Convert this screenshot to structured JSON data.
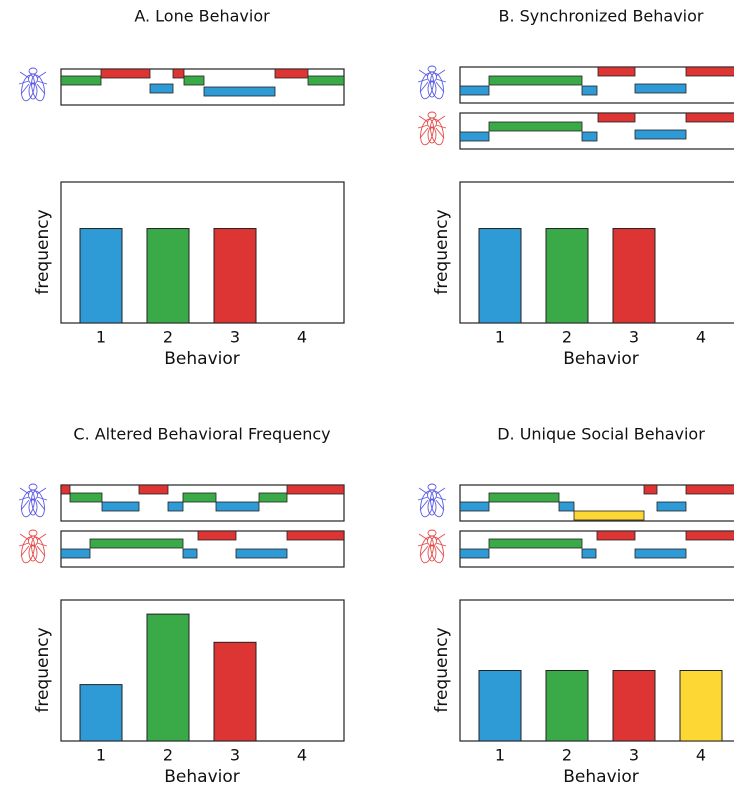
{
  "chart_data": [
    {
      "type": "bar",
      "title": "A. Lone Behavior",
      "xlabel": "Behavior",
      "ylabel": "frequency",
      "categories": [
        "1",
        "2",
        "3",
        "4"
      ],
      "values": [
        67,
        67,
        67,
        0
      ],
      "colors": [
        "#2e9bd6",
        "#3aaa48",
        "#dd3434",
        "#fdd835"
      ],
      "ylim": [
        0,
        100
      ]
    },
    {
      "type": "bar",
      "title": "B. Synchronized Behavior",
      "xlabel": "Behavior",
      "ylabel": "frequency",
      "categories": [
        "1",
        "2",
        "3",
        "4"
      ],
      "values": [
        67,
        67,
        67,
        0
      ],
      "colors": [
        "#2e9bd6",
        "#3aaa48",
        "#dd3434",
        "#fdd835"
      ],
      "ylim": [
        0,
        100
      ]
    },
    {
      "type": "bar",
      "title": "C. Altered Behavioral Frequency",
      "xlabel": "Behavior",
      "ylabel": "frequency",
      "categories": [
        "1",
        "2",
        "3",
        "4"
      ],
      "values": [
        40,
        90,
        70,
        0
      ],
      "colors": [
        "#2e9bd6",
        "#3aaa48",
        "#dd3434",
        "#fdd835"
      ],
      "ylim": [
        0,
        100
      ]
    },
    {
      "type": "bar",
      "title": "D. Unique Social Behavior",
      "xlabel": "Behavior",
      "ylabel": "frequency",
      "categories": [
        "1",
        "2",
        "3",
        "4"
      ],
      "values": [
        50,
        50,
        50,
        50
      ],
      "colors": [
        "#2e9bd6",
        "#3aaa48",
        "#dd3434",
        "#fdd835"
      ],
      "ylim": [
        0,
        100
      ]
    }
  ]
}
